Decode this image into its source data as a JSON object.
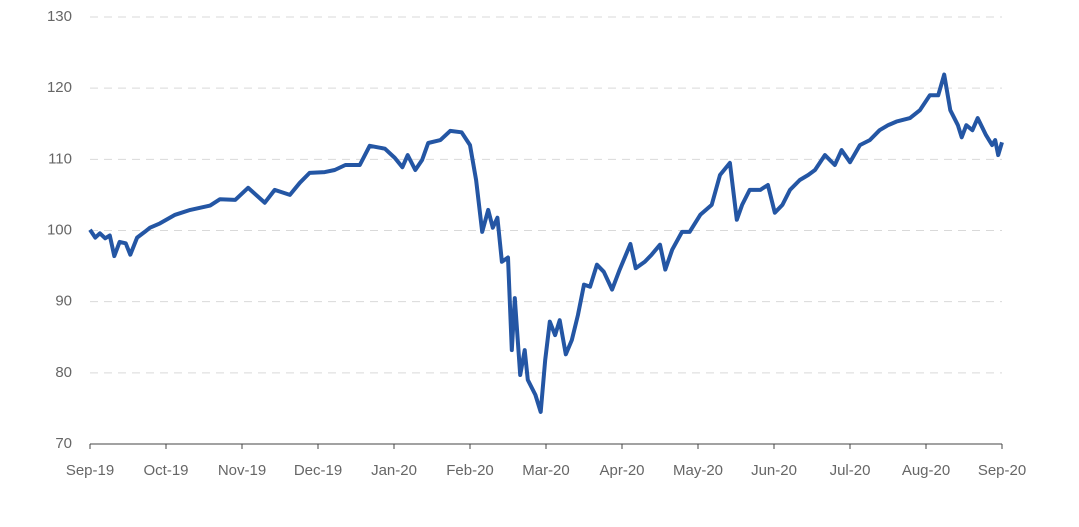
{
  "chart_data": {
    "type": "line",
    "x": [
      0,
      0.07,
      0.13,
      0.2,
      0.26,
      0.32,
      0.39,
      0.47,
      0.53,
      0.62,
      0.72,
      0.79,
      0.92,
      1.12,
      1.32,
      1.58,
      1.71,
      1.91,
      2.08,
      2.3,
      2.43,
      2.63,
      2.76,
      2.89,
      3.09,
      3.22,
      3.36,
      3.55,
      3.68,
      3.88,
      4.01,
      4.11,
      4.18,
      4.28,
      4.37,
      4.45,
      4.61,
      4.74,
      4.89,
      5,
      5.08,
      5.16,
      5.24,
      5.3,
      5.36,
      5.42,
      5.5,
      5.55,
      5.59,
      5.66,
      5.72,
      5.76,
      5.86,
      5.93,
      5.99,
      6.05,
      6.12,
      6.18,
      6.26,
      6.34,
      6.42,
      6.5,
      6.58,
      6.67,
      6.76,
      6.87,
      6.97,
      7.11,
      7.18,
      7.3,
      7.39,
      7.5,
      7.57,
      7.66,
      7.79,
      7.89,
      8.03,
      8.18,
      8.29,
      8.42,
      8.51,
      8.58,
      8.68,
      8.82,
      8.92,
      9.01,
      9.11,
      9.21,
      9.34,
      9.45,
      9.54,
      9.67,
      9.8,
      9.89,
      10,
      10.13,
      10.26,
      10.39,
      10.5,
      10.61,
      10.79,
      10.92,
      11.05,
      11.16,
      11.24,
      11.32,
      11.42,
      11.47,
      11.53,
      11.61,
      11.68,
      11.79,
      11.87,
      11.91,
      11.95,
      12
    ],
    "series": [
      {
        "color": "#2456a4",
        "values": [
          100.1,
          99,
          99.6,
          98.9,
          99.3,
          96.4,
          98.4,
          98.2,
          96.6,
          99,
          99.8,
          100.4,
          101,
          102.2,
          102.9,
          103.5,
          104.4,
          104.3,
          106,
          103.9,
          105.7,
          105,
          106.7,
          108.1,
          108.2,
          108.5,
          109.2,
          109.2,
          111.9,
          111.5,
          110.2,
          108.9,
          110.6,
          108.5,
          109.9,
          112.3,
          112.7,
          114,
          113.8,
          112,
          107.1,
          99.8,
          102.9,
          100.4,
          101.8,
          95.6,
          96.2,
          83.2,
          90.5,
          79.7,
          83.2,
          79,
          76.9,
          74.5,
          81.8,
          87.2,
          85.3,
          87.4,
          82.6,
          84.6,
          88.1,
          92.4,
          92.1,
          95.2,
          94.2,
          91.7,
          94.5,
          98.1,
          94.7,
          95.6,
          96.6,
          98,
          94.5,
          97.3,
          99.8,
          99.8,
          102.2,
          103.6,
          107.8,
          109.5,
          101.5,
          103.6,
          105.7,
          105.7,
          106.4,
          102.5,
          103.6,
          105.7,
          107.1,
          107.8,
          108.5,
          110.6,
          109.2,
          111.3,
          109.6,
          112,
          112.7,
          114.1,
          114.8,
          115.3,
          115.8,
          116.9,
          119,
          119,
          121.9,
          116.9,
          114.8,
          113.1,
          114.8,
          114.1,
          115.8,
          113.4,
          112,
          112.7,
          110.6,
          112.4
        ]
      }
    ],
    "xlim": [
      0,
      12
    ],
    "xticks": [
      {
        "value": 0,
        "label": "Sep-19"
      },
      {
        "value": 1,
        "label": "Oct-19"
      },
      {
        "value": 2,
        "label": "Nov-19"
      },
      {
        "value": 3,
        "label": "Dec-19"
      },
      {
        "value": 4,
        "label": "Jan-20"
      },
      {
        "value": 5,
        "label": "Feb-20"
      },
      {
        "value": 6,
        "label": "Mar-20"
      },
      {
        "value": 7,
        "label": "Apr-20"
      },
      {
        "value": 8,
        "label": "May-20"
      },
      {
        "value": 9,
        "label": "Jun-20"
      },
      {
        "value": 10,
        "label": "Jul-20"
      },
      {
        "value": 11,
        "label": "Aug-20"
      },
      {
        "value": 12,
        "label": "Sep-20"
      }
    ],
    "ylim": [
      70,
      130
    ],
    "yticks": [
      70,
      80,
      90,
      100,
      110,
      120,
      130
    ],
    "grid": true
  }
}
